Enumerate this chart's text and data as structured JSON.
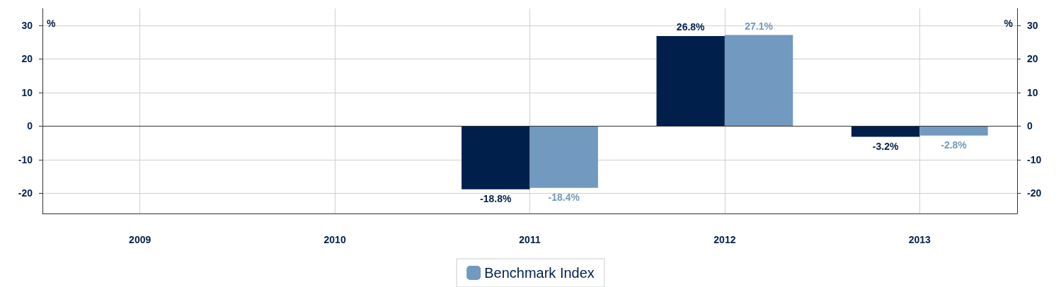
{
  "chart_data": {
    "type": "bar",
    "categories": [
      "2009",
      "2010",
      "2011",
      "2012",
      "2013"
    ],
    "series": [
      {
        "color": "#001f4b",
        "values": [
          null,
          null,
          -18.8,
          26.8,
          -3.2
        ],
        "value_labels": [
          null,
          null,
          "-18.8%",
          "26.8%",
          "-3.2%"
        ]
      },
      {
        "name": "Benchmark Index",
        "color": "#7299bf",
        "values": [
          null,
          null,
          -18.4,
          27.1,
          -2.8
        ],
        "value_labels": [
          null,
          null,
          "-18.4%",
          "27.1%",
          "-2.8%"
        ]
      }
    ],
    "ylabel": "%",
    "y2label": "%",
    "ylim": [
      -26,
      35
    ],
    "yticks": [
      -20,
      -10,
      0,
      10,
      20,
      30
    ],
    "y2lim": [
      -26,
      35
    ],
    "y2ticks": [
      -20,
      -10,
      0,
      10,
      20,
      30
    ],
    "grid": true,
    "legend": "bottom"
  }
}
